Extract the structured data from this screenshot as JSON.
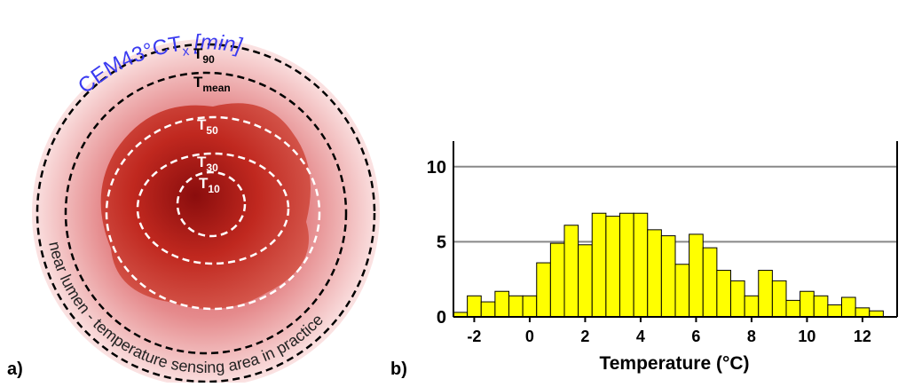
{
  "panel_a": {
    "label": "a)",
    "title": {
      "main": "CEM43°CT",
      "sub": "x",
      "unit": "[min]"
    },
    "isotherms": [
      {
        "main": "T",
        "sub": "90"
      },
      {
        "main": "T",
        "sub": "mean"
      },
      {
        "main": "T",
        "sub": "50"
      },
      {
        "main": "T",
        "sub": "30"
      },
      {
        "main": "T",
        "sub": "10"
      }
    ],
    "arc_text": "near lumen - temperature sensing area in practice"
  },
  "chart_data": {
    "type": "histogram",
    "panel_label": "b)",
    "xlabel": "Temperature (°C)",
    "bins": [
      -2.75,
      -2.25,
      -1.75,
      -1.25,
      -0.75,
      -0.25,
      0.25,
      0.75,
      1.25,
      1.75,
      2.25,
      2.75,
      3.25,
      3.75,
      4.25,
      4.75,
      5.25,
      5.75,
      6.25,
      6.75,
      7.25,
      7.75,
      8.25,
      8.75,
      9.25,
      9.75,
      10.25,
      10.75,
      11.25,
      11.75,
      12.25,
      12.75
    ],
    "values": [
      0.3,
      1.4,
      1.0,
      1.7,
      1.4,
      1.4,
      3.6,
      4.9,
      6.1,
      4.8,
      6.9,
      6.7,
      6.9,
      6.9,
      5.8,
      5.4,
      3.5,
      5.5,
      4.6,
      3.1,
      2.4,
      1.4,
      3.1,
      2.4,
      1.1,
      1.7,
      1.4,
      0.8,
      1.3,
      0.6,
      0.4
    ],
    "color": "#ffff00",
    "xlim": [
      -2.75,
      13.25
    ],
    "xticks": [
      -2,
      0,
      2,
      4,
      6,
      8,
      10,
      12
    ],
    "ylim": [
      0,
      11.7
    ],
    "yticks": [
      0,
      5,
      10
    ],
    "grid": true
  }
}
